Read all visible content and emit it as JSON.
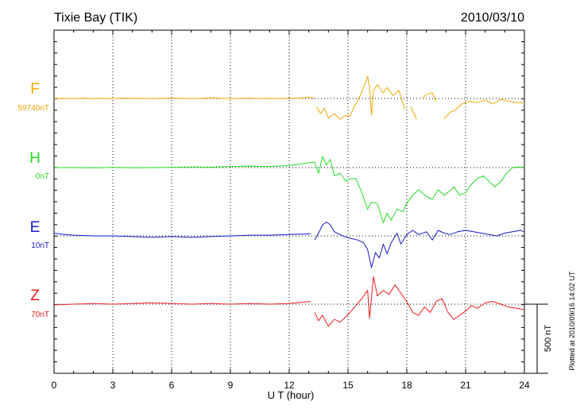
{
  "chart_data": {
    "type": "line",
    "title": "Tixie Bay (TIK)",
    "date": "2010/03/10",
    "xlabel": "U T (hour)",
    "xlim": [
      0,
      24
    ],
    "x_ticks": [
      "0",
      "3",
      "6",
      "9",
      "12",
      "15",
      "18",
      "21",
      "24"
    ],
    "grid": true,
    "scale_bar_label": "500 nT",
    "scale_bar_value_nT": 500,
    "plotted_note": "Plotted at 2010/09/16 14:02 UT",
    "series": [
      {
        "name": "F",
        "baseline_label": "59740nT",
        "baseline_nT": 59740,
        "color": "#f0a800",
        "gaps": [
          [
            13.3,
            13.4
          ],
          [
            17.9,
            18.2
          ],
          [
            18.5,
            18.8
          ],
          [
            19.5,
            19.9
          ]
        ],
        "points": [
          [
            0,
            0
          ],
          [
            0.5,
            2
          ],
          [
            1,
            -2
          ],
          [
            1.5,
            3
          ],
          [
            2,
            -1
          ],
          [
            2.5,
            2
          ],
          [
            3,
            0
          ],
          [
            3.5,
            3
          ],
          [
            4,
            1
          ],
          [
            4.5,
            2
          ],
          [
            5,
            -1
          ],
          [
            5.5,
            2
          ],
          [
            6,
            3
          ],
          [
            6.5,
            1
          ],
          [
            7,
            -2
          ],
          [
            7.5,
            2
          ],
          [
            8,
            4
          ],
          [
            8.5,
            2
          ],
          [
            9,
            -1
          ],
          [
            9.5,
            2
          ],
          [
            10,
            3
          ],
          [
            10.5,
            0
          ],
          [
            11,
            2
          ],
          [
            11.5,
            -1
          ],
          [
            12,
            3
          ],
          [
            12.5,
            2
          ],
          [
            13,
            10
          ],
          [
            13.3,
            0
          ],
          [
            13.4,
            -60
          ],
          [
            13.6,
            -110
          ],
          [
            13.8,
            -70
          ],
          [
            14.0,
            -140
          ],
          [
            14.3,
            -110
          ],
          [
            14.6,
            -150
          ],
          [
            14.9,
            -120
          ],
          [
            15.1,
            -130
          ],
          [
            15.3,
            -60
          ],
          [
            15.5,
            -20
          ],
          [
            15.8,
            80
          ],
          [
            16.0,
            160
          ],
          [
            16.1,
            80
          ],
          [
            16.2,
            -120
          ],
          [
            16.3,
            60
          ],
          [
            16.5,
            100
          ],
          [
            16.8,
            40
          ],
          [
            17.0,
            80
          ],
          [
            17.3,
            20
          ],
          [
            17.6,
            60
          ],
          [
            17.9,
            -80
          ],
          [
            18.2,
            -60
          ],
          [
            18.5,
            -150
          ],
          [
            18.8,
            0
          ],
          [
            19.0,
            30
          ],
          [
            19.3,
            40
          ],
          [
            19.5,
            -20
          ],
          [
            19.9,
            -150
          ],
          [
            20.2,
            -100
          ],
          [
            20.5,
            -80
          ],
          [
            20.8,
            -40
          ],
          [
            21.2,
            -20
          ],
          [
            21.6,
            -30
          ],
          [
            22.0,
            -10
          ],
          [
            22.4,
            -40
          ],
          [
            22.8,
            -5
          ],
          [
            23.2,
            -20
          ],
          [
            23.6,
            -30
          ],
          [
            24,
            -30
          ]
        ]
      },
      {
        "name": "H",
        "baseline_label": "0nT",
        "baseline_nT": 0,
        "color": "#22dd22",
        "gaps": [],
        "points": [
          [
            0,
            0
          ],
          [
            1,
            0
          ],
          [
            2,
            -2
          ],
          [
            3,
            1
          ],
          [
            4,
            -1
          ],
          [
            5,
            0
          ],
          [
            6,
            2
          ],
          [
            7,
            5
          ],
          [
            8,
            3
          ],
          [
            9,
            8
          ],
          [
            10,
            10
          ],
          [
            11,
            8
          ],
          [
            12,
            15
          ],
          [
            12.8,
            30
          ],
          [
            13.3,
            40
          ],
          [
            13.5,
            -40
          ],
          [
            13.7,
            80
          ],
          [
            13.9,
            20
          ],
          [
            14.1,
            60
          ],
          [
            14.3,
            -60
          ],
          [
            14.6,
            -40
          ],
          [
            14.9,
            -100
          ],
          [
            15.1,
            -80
          ],
          [
            15.4,
            -80
          ],
          [
            15.7,
            -180
          ],
          [
            16.0,
            -300
          ],
          [
            16.2,
            -250
          ],
          [
            16.5,
            -260
          ],
          [
            16.8,
            -400
          ],
          [
            17.0,
            -330
          ],
          [
            17.2,
            -380
          ],
          [
            17.5,
            -300
          ],
          [
            17.8,
            -320
          ],
          [
            18.0,
            -260
          ],
          [
            18.3,
            -200
          ],
          [
            18.6,
            -160
          ],
          [
            19.0,
            -210
          ],
          [
            19.3,
            -230
          ],
          [
            19.6,
            -160
          ],
          [
            19.9,
            -200
          ],
          [
            20.1,
            -180
          ],
          [
            20.4,
            -140
          ],
          [
            20.7,
            -200
          ],
          [
            21.0,
            -180
          ],
          [
            21.3,
            -120
          ],
          [
            21.6,
            -80
          ],
          [
            21.9,
            -60
          ],
          [
            22.2,
            -100
          ],
          [
            22.5,
            -140
          ],
          [
            22.8,
            -100
          ],
          [
            23.1,
            -40
          ],
          [
            23.4,
            0
          ],
          [
            23.7,
            5
          ],
          [
            24,
            0
          ]
        ]
      },
      {
        "name": "E",
        "baseline_label": "10nT",
        "baseline_nT": 10,
        "color": "#1a1acc",
        "gaps": [
          [
            13.1,
            13.3
          ]
        ],
        "points": [
          [
            0,
            20
          ],
          [
            0.5,
            10
          ],
          [
            1,
            5
          ],
          [
            2,
            0
          ],
          [
            3,
            0
          ],
          [
            4,
            -5
          ],
          [
            5,
            -10
          ],
          [
            6,
            -5
          ],
          [
            7,
            -10
          ],
          [
            8,
            -5
          ],
          [
            9,
            0
          ],
          [
            10,
            5
          ],
          [
            11,
            5
          ],
          [
            12,
            10
          ],
          [
            13.1,
            15
          ],
          [
            13.3,
            -30
          ],
          [
            13.5,
            20
          ],
          [
            13.7,
            80
          ],
          [
            13.9,
            100
          ],
          [
            14.1,
            80
          ],
          [
            14.3,
            30
          ],
          [
            14.6,
            10
          ],
          [
            14.9,
            -10
          ],
          [
            15.2,
            -20
          ],
          [
            15.5,
            -30
          ],
          [
            15.8,
            -50
          ],
          [
            16.0,
            -100
          ],
          [
            16.2,
            -230
          ],
          [
            16.4,
            -120
          ],
          [
            16.6,
            -160
          ],
          [
            16.8,
            -60
          ],
          [
            17.0,
            -130
          ],
          [
            17.2,
            -50
          ],
          [
            17.5,
            20
          ],
          [
            17.7,
            -60
          ],
          [
            18.0,
            10
          ],
          [
            18.3,
            40
          ],
          [
            18.6,
            10
          ],
          [
            19.0,
            30
          ],
          [
            19.3,
            -30
          ],
          [
            19.6,
            40
          ],
          [
            19.9,
            20
          ],
          [
            20.2,
            10
          ],
          [
            20.6,
            30
          ],
          [
            21.0,
            40
          ],
          [
            21.4,
            30
          ],
          [
            21.8,
            20
          ],
          [
            22.2,
            10
          ],
          [
            22.6,
            0
          ],
          [
            23.0,
            20
          ],
          [
            23.4,
            30
          ],
          [
            23.8,
            40
          ],
          [
            24,
            30
          ]
        ]
      },
      {
        "name": "Z",
        "baseline_label": "70nT",
        "baseline_nT": 70,
        "color": "#ee1c1c",
        "gaps": [
          [
            13.1,
            13.3
          ]
        ],
        "points": [
          [
            0,
            -5
          ],
          [
            1,
            0
          ],
          [
            2,
            5
          ],
          [
            3,
            0
          ],
          [
            4,
            5
          ],
          [
            5,
            10
          ],
          [
            6,
            5
          ],
          [
            7,
            0
          ],
          [
            8,
            5
          ],
          [
            9,
            0
          ],
          [
            10,
            5
          ],
          [
            11,
            0
          ],
          [
            12,
            5
          ],
          [
            13.1,
            20
          ],
          [
            13.3,
            -60
          ],
          [
            13.5,
            -120
          ],
          [
            13.7,
            -80
          ],
          [
            14.0,
            -160
          ],
          [
            14.3,
            -110
          ],
          [
            14.6,
            -130
          ],
          [
            14.9,
            -90
          ],
          [
            15.1,
            -60
          ],
          [
            15.4,
            -10
          ],
          [
            15.7,
            40
          ],
          [
            16.0,
            100
          ],
          [
            16.1,
            -100
          ],
          [
            16.3,
            200
          ],
          [
            16.5,
            60
          ],
          [
            16.8,
            100
          ],
          [
            17.1,
            70
          ],
          [
            17.4,
            140
          ],
          [
            17.7,
            80
          ],
          [
            18.0,
            20
          ],
          [
            18.3,
            -60
          ],
          [
            18.6,
            -80
          ],
          [
            18.9,
            -20
          ],
          [
            19.2,
            -60
          ],
          [
            19.5,
            20
          ],
          [
            19.8,
            40
          ],
          [
            20.1,
            -60
          ],
          [
            20.4,
            -110
          ],
          [
            20.7,
            -80
          ],
          [
            21.0,
            -50
          ],
          [
            21.3,
            -10
          ],
          [
            21.6,
            -30
          ],
          [
            22.0,
            10
          ],
          [
            22.4,
            20
          ],
          [
            22.8,
            0
          ],
          [
            23.2,
            -20
          ],
          [
            23.6,
            -30
          ],
          [
            24,
            -40
          ]
        ]
      }
    ]
  }
}
